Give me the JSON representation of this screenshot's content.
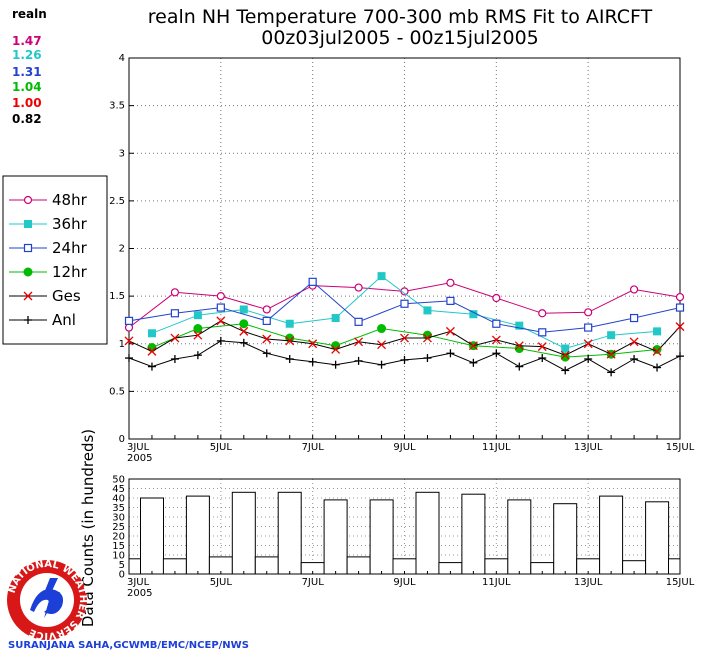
{
  "header": {
    "title_line1": "realn NH Temperature 700-300 mb RMS Fit to AIRCFT",
    "title_line2": "00z03jul2005 - 00z15jul2005"
  },
  "summary": {
    "label": "realn",
    "items": [
      {
        "value": "1.47",
        "color": "#cc0077"
      },
      {
        "value": "1.26",
        "color": "#22c8c8"
      },
      {
        "value": "1.31",
        "color": "#2244cc"
      },
      {
        "value": "1.04",
        "color": "#00bb00"
      },
      {
        "value": "1.00",
        "color": "#ee0000"
      },
      {
        "value": "0.82",
        "color": "#000000"
      }
    ]
  },
  "credit": "SURANJANA SAHA,GCWMB/EMC/NCEP/NWS",
  "logo": {
    "ring_text": "NATIONAL WEATHER SERVICE"
  },
  "chart_data": [
    {
      "type": "line",
      "title": "realn NH Temperature 700-300 mb RMS Fit to AIRCFT",
      "subtitle": "00z03jul2005 - 00z15jul2005",
      "x_domain": [
        0,
        24
      ],
      "ylim": [
        0,
        4
      ],
      "yticks": [
        "0",
        "0.5",
        "1",
        "1.5",
        "2",
        "2.5",
        "3",
        "3.5",
        "4"
      ],
      "xticks": [
        {
          "x": 0,
          "label": "3JUL",
          "sub": "2005"
        },
        {
          "x": 4,
          "label": "5JUL"
        },
        {
          "x": 8,
          "label": "7JUL"
        },
        {
          "x": 12,
          "label": "9JUL"
        },
        {
          "x": 16,
          "label": "11JUL"
        },
        {
          "x": 20,
          "label": "13JUL"
        },
        {
          "x": 24,
          "label": "15JUL"
        }
      ],
      "grid": true,
      "legend_position": "left",
      "series": [
        {
          "name": "48hr",
          "color": "#cc0077",
          "marker": "circle-open",
          "points": [
            [
              0,
              1.17
            ],
            [
              2,
              1.54
            ],
            [
              4,
              1.5
            ],
            [
              6,
              1.36
            ],
            [
              8,
              1.61
            ],
            [
              10,
              1.59
            ],
            [
              12,
              1.55
            ],
            [
              14,
              1.64
            ],
            [
              16,
              1.48
            ],
            [
              18,
              1.32
            ],
            [
              20,
              1.33
            ],
            [
              22,
              1.57
            ],
            [
              24,
              1.49
            ]
          ]
        },
        {
          "name": "36hr",
          "color": "#22c8c8",
          "marker": "square-filled",
          "points": [
            [
              1,
              1.11
            ],
            [
              3,
              1.3
            ],
            [
              5,
              1.36
            ],
            [
              7,
              1.21
            ],
            [
              9,
              1.27
            ],
            [
              11,
              1.71
            ],
            [
              13,
              1.35
            ],
            [
              15,
              1.31
            ],
            [
              17,
              1.19
            ],
            [
              19,
              0.95
            ],
            [
              21,
              1.09
            ],
            [
              23,
              1.13
            ]
          ]
        },
        {
          "name": "24hr",
          "color": "#2244cc",
          "marker": "square-open",
          "points": [
            [
              0,
              1.24
            ],
            [
              2,
              1.32
            ],
            [
              4,
              1.38
            ],
            [
              6,
              1.24
            ],
            [
              8,
              1.65
            ],
            [
              10,
              1.23
            ],
            [
              12,
              1.42
            ],
            [
              14,
              1.45
            ],
            [
              16,
              1.21
            ],
            [
              18,
              1.12
            ],
            [
              20,
              1.17
            ],
            [
              22,
              1.27
            ],
            [
              24,
              1.38
            ]
          ]
        },
        {
          "name": "12hr",
          "color": "#00bb00",
          "marker": "circle-filled",
          "points": [
            [
              1,
              0.96
            ],
            [
              3,
              1.16
            ],
            [
              5,
              1.21
            ],
            [
              7,
              1.06
            ],
            [
              9,
              0.98
            ],
            [
              11,
              1.16
            ],
            [
              13,
              1.09
            ],
            [
              15,
              0.98
            ],
            [
              17,
              0.95
            ],
            [
              19,
              0.86
            ],
            [
              21,
              0.89
            ],
            [
              23,
              0.94
            ]
          ]
        },
        {
          "name": "Ges",
          "color": "#ee0000",
          "marker": "x",
          "line_color": "#000000",
          "points": [
            [
              0,
              1.03
            ],
            [
              1,
              0.92
            ],
            [
              2,
              1.06
            ],
            [
              3,
              1.09
            ],
            [
              4,
              1.24
            ],
            [
              5,
              1.13
            ],
            [
              6,
              1.05
            ],
            [
              7,
              1.03
            ],
            [
              8,
              1.0
            ],
            [
              9,
              0.94
            ],
            [
              10,
              1.02
            ],
            [
              11,
              0.99
            ],
            [
              12,
              1.06
            ],
            [
              13,
              1.06
            ],
            [
              14,
              1.13
            ],
            [
              15,
              0.98
            ],
            [
              16,
              1.04
            ],
            [
              17,
              0.98
            ],
            [
              18,
              0.97
            ],
            [
              19,
              0.88
            ],
            [
              20,
              1.0
            ],
            [
              21,
              0.89
            ],
            [
              22,
              1.02
            ],
            [
              23,
              0.92
            ],
            [
              24,
              1.18
            ]
          ]
        },
        {
          "name": "Anl",
          "color": "#000000",
          "marker": "plus",
          "points": [
            [
              0,
              0.85
            ],
            [
              1,
              0.76
            ],
            [
              2,
              0.84
            ],
            [
              3,
              0.88
            ],
            [
              4,
              1.03
            ],
            [
              5,
              1.01
            ],
            [
              6,
              0.9
            ],
            [
              7,
              0.84
            ],
            [
              8,
              0.81
            ],
            [
              9,
              0.78
            ],
            [
              10,
              0.82
            ],
            [
              11,
              0.78
            ],
            [
              12,
              0.83
            ],
            [
              13,
              0.85
            ],
            [
              14,
              0.9
            ],
            [
              15,
              0.8
            ],
            [
              16,
              0.9
            ],
            [
              17,
              0.76
            ],
            [
              18,
              0.85
            ],
            [
              19,
              0.72
            ],
            [
              20,
              0.84
            ],
            [
              21,
              0.7
            ],
            [
              22,
              0.84
            ],
            [
              23,
              0.75
            ],
            [
              24,
              0.87
            ]
          ]
        }
      ]
    },
    {
      "type": "bar",
      "ylabel": "Data Counts (in hundreds)",
      "x_domain": [
        0,
        24
      ],
      "ylim": [
        0,
        50
      ],
      "yticks": [
        "0",
        "5",
        "10",
        "15",
        "20",
        "25",
        "30",
        "35",
        "40",
        "45",
        "50"
      ],
      "xticks": [
        {
          "x": 0,
          "label": "3JUL",
          "sub": "2005"
        },
        {
          "x": 4,
          "label": "5JUL"
        },
        {
          "x": 8,
          "label": "7JUL"
        },
        {
          "x": 12,
          "label": "9JUL"
        },
        {
          "x": 16,
          "label": "11JUL"
        },
        {
          "x": 20,
          "label": "13JUL"
        },
        {
          "x": 24,
          "label": "15JUL"
        }
      ],
      "bars": [
        {
          "x": 0,
          "value": 8
        },
        {
          "x": 1,
          "value": 40
        },
        {
          "x": 2,
          "value": 8
        },
        {
          "x": 3,
          "value": 41
        },
        {
          "x": 4,
          "value": 9
        },
        {
          "x": 5,
          "value": 43
        },
        {
          "x": 6,
          "value": 9
        },
        {
          "x": 7,
          "value": 43
        },
        {
          "x": 8,
          "value": 6
        },
        {
          "x": 9,
          "value": 39
        },
        {
          "x": 10,
          "value": 9
        },
        {
          "x": 11,
          "value": 39
        },
        {
          "x": 12,
          "value": 8
        },
        {
          "x": 13,
          "value": 43
        },
        {
          "x": 14,
          "value": 6
        },
        {
          "x": 15,
          "value": 42
        },
        {
          "x": 16,
          "value": 8
        },
        {
          "x": 17,
          "value": 39
        },
        {
          "x": 18,
          "value": 6
        },
        {
          "x": 19,
          "value": 37
        },
        {
          "x": 20,
          "value": 8
        },
        {
          "x": 21,
          "value": 41
        },
        {
          "x": 22,
          "value": 7
        },
        {
          "x": 23,
          "value": 38
        },
        {
          "x": 24,
          "value": 8
        }
      ]
    }
  ]
}
